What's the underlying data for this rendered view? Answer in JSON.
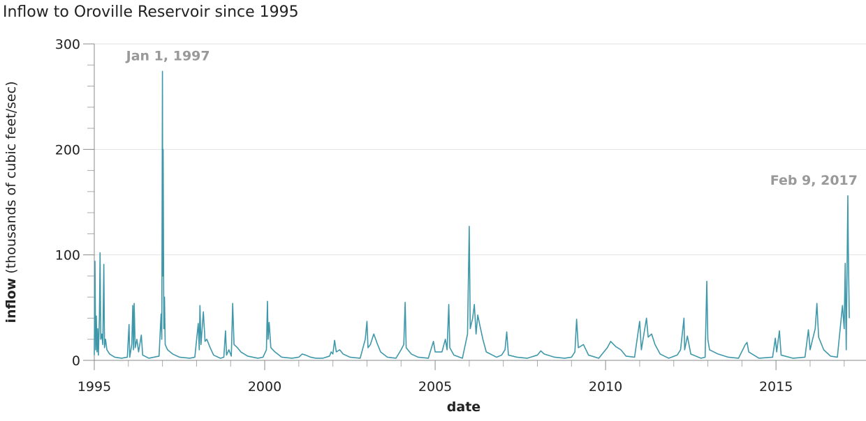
{
  "chart_data": {
    "type": "line",
    "title": "Inflow to Oroville Reservoir since 1995",
    "xlabel": "date",
    "ylabel_bold": "inflow",
    "ylabel": "(thousands of cubic feet/sec)",
    "color": "#3e98aa",
    "grid": true,
    "xlim": [
      1995,
      2017.64
    ],
    "ylim": [
      0,
      300
    ],
    "xticks": [
      1995,
      2000,
      2005,
      2010,
      2015
    ],
    "xticks_minor": [
      1996,
      1997,
      1998,
      1999,
      2001,
      2002,
      2003,
      2004,
      2006,
      2007,
      2008,
      2009,
      2011,
      2012,
      2013,
      2014,
      2016,
      2017
    ],
    "yticks": [
      0,
      100,
      200,
      300
    ],
    "yticks_minor": [
      20,
      40,
      60,
      80,
      120,
      140,
      160,
      180,
      220,
      240,
      260,
      280
    ],
    "annotations": [
      {
        "text": "Jan 1, 1997",
        "x": 1997.0,
        "y": 274
      },
      {
        "text": "Feb 9, 2017",
        "x": 2017.107,
        "y": 156
      }
    ],
    "x": [
      1995.0,
      1995.02,
      1995.04,
      1995.06,
      1995.08,
      1995.1,
      1995.12,
      1995.15,
      1995.17,
      1995.19,
      1995.22,
      1995.25,
      1995.28,
      1995.3,
      1995.33,
      1995.37,
      1995.45,
      1995.6,
      1995.8,
      1995.97,
      1996.02,
      1996.04,
      1996.1,
      1996.13,
      1996.15,
      1996.17,
      1996.2,
      1996.25,
      1996.3,
      1996.38,
      1996.42,
      1996.6,
      1996.9,
      1996.96,
      1996.98,
      1997.0,
      1997.01,
      1997.02,
      1997.04,
      1997.06,
      1997.08,
      1997.15,
      1997.3,
      1997.5,
      1997.8,
      1997.95,
      1998.05,
      1998.08,
      1998.1,
      1998.13,
      1998.2,
      1998.25,
      1998.3,
      1998.4,
      1998.5,
      1998.7,
      1998.8,
      1998.85,
      1998.88,
      1998.95,
      1999.02,
      1999.06,
      1999.1,
      1999.2,
      1999.3,
      1999.5,
      1999.8,
      1999.95,
      2000.05,
      2000.08,
      2000.1,
      2000.13,
      2000.18,
      2000.3,
      2000.5,
      2000.8,
      2001.0,
      2001.1,
      2001.2,
      2001.35,
      2001.5,
      2001.7,
      2001.9,
      2001.95,
      2002.0,
      2002.05,
      2002.1,
      2002.2,
      2002.3,
      2002.5,
      2002.8,
      2002.95,
      2003.0,
      2003.03,
      2003.1,
      2003.2,
      2003.3,
      2003.4,
      2003.6,
      2003.85,
      2004.0,
      2004.08,
      2004.12,
      2004.15,
      2004.3,
      2004.5,
      2004.8,
      2004.95,
      2005.0,
      2005.2,
      2005.3,
      2005.35,
      2005.4,
      2005.43,
      2005.55,
      2005.8,
      2005.95,
      2006.0,
      2006.03,
      2006.1,
      2006.15,
      2006.2,
      2006.25,
      2006.3,
      2006.4,
      2006.5,
      2006.8,
      2006.95,
      2007.05,
      2007.1,
      2007.15,
      2007.4,
      2007.7,
      2008.0,
      2008.1,
      2008.2,
      2008.5,
      2008.8,
      2009.0,
      2009.1,
      2009.15,
      2009.2,
      2009.35,
      2009.5,
      2009.8,
      2009.95,
      2010.05,
      2010.15,
      2010.3,
      2010.45,
      2010.6,
      2010.85,
      2011.0,
      2011.05,
      2011.2,
      2011.25,
      2011.35,
      2011.45,
      2011.6,
      2011.85,
      2012.1,
      2012.2,
      2012.3,
      2012.32,
      2012.4,
      2012.5,
      2012.8,
      2012.92,
      2012.97,
      2013.0,
      2013.05,
      2013.3,
      2013.6,
      2013.9,
      2014.1,
      2014.15,
      2014.2,
      2014.5,
      2014.9,
      2014.98,
      2015.02,
      2015.1,
      2015.15,
      2015.5,
      2015.85,
      2015.95,
      2016.0,
      2016.15,
      2016.2,
      2016.25,
      2016.4,
      2016.6,
      2016.8,
      2016.95,
      2017.0,
      2017.03,
      2017.06,
      2017.107,
      2017.12,
      2017.15
    ],
    "values": [
      5,
      94,
      10,
      42,
      8,
      30,
      5,
      40,
      102,
      20,
      25,
      15,
      91,
      12,
      20,
      10,
      6,
      3,
      2,
      3,
      34,
      3,
      15,
      52,
      10,
      54,
      12,
      20,
      8,
      24,
      5,
      2,
      4,
      44,
      20,
      274,
      80,
      200,
      30,
      60,
      15,
      10,
      6,
      3,
      2,
      3,
      35,
      10,
      52,
      15,
      46,
      18,
      20,
      12,
      5,
      2,
      3,
      28,
      5,
      10,
      4,
      54,
      15,
      12,
      8,
      4,
      2,
      3,
      10,
      56,
      20,
      36,
      12,
      8,
      3,
      2,
      3,
      6,
      5,
      3,
      2,
      2,
      4,
      8,
      6,
      19,
      8,
      10,
      6,
      3,
      2,
      20,
      37,
      12,
      15,
      25,
      16,
      8,
      3,
      2,
      10,
      15,
      55,
      12,
      6,
      3,
      2,
      18,
      8,
      8,
      20,
      10,
      53,
      12,
      5,
      2,
      25,
      127,
      30,
      40,
      53,
      25,
      43,
      35,
      20,
      8,
      3,
      5,
      10,
      27,
      5,
      3,
      2,
      5,
      9,
      6,
      3,
      2,
      3,
      8,
      39,
      12,
      15,
      5,
      2,
      8,
      12,
      18,
      13,
      10,
      4,
      3,
      37,
      10,
      40,
      22,
      25,
      15,
      6,
      2,
      5,
      10,
      40,
      10,
      23,
      6,
      2,
      3,
      75,
      20,
      10,
      6,
      3,
      2,
      15,
      17,
      8,
      2,
      3,
      21,
      8,
      28,
      5,
      2,
      3,
      29,
      10,
      30,
      54,
      22,
      10,
      4,
      3,
      52,
      30,
      92,
      10,
      156,
      108,
      40
    ]
  }
}
